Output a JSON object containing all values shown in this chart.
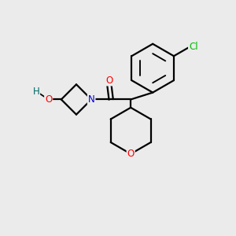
{
  "bg_color": "#ebebeb",
  "bond_color": "#000000",
  "bond_width": 1.6,
  "atom_colors": {
    "O": "#ff0000",
    "N": "#0000cc",
    "Cl": "#00bb00",
    "H": "#006666",
    "C": "#000000"
  },
  "font_size": 8.5
}
